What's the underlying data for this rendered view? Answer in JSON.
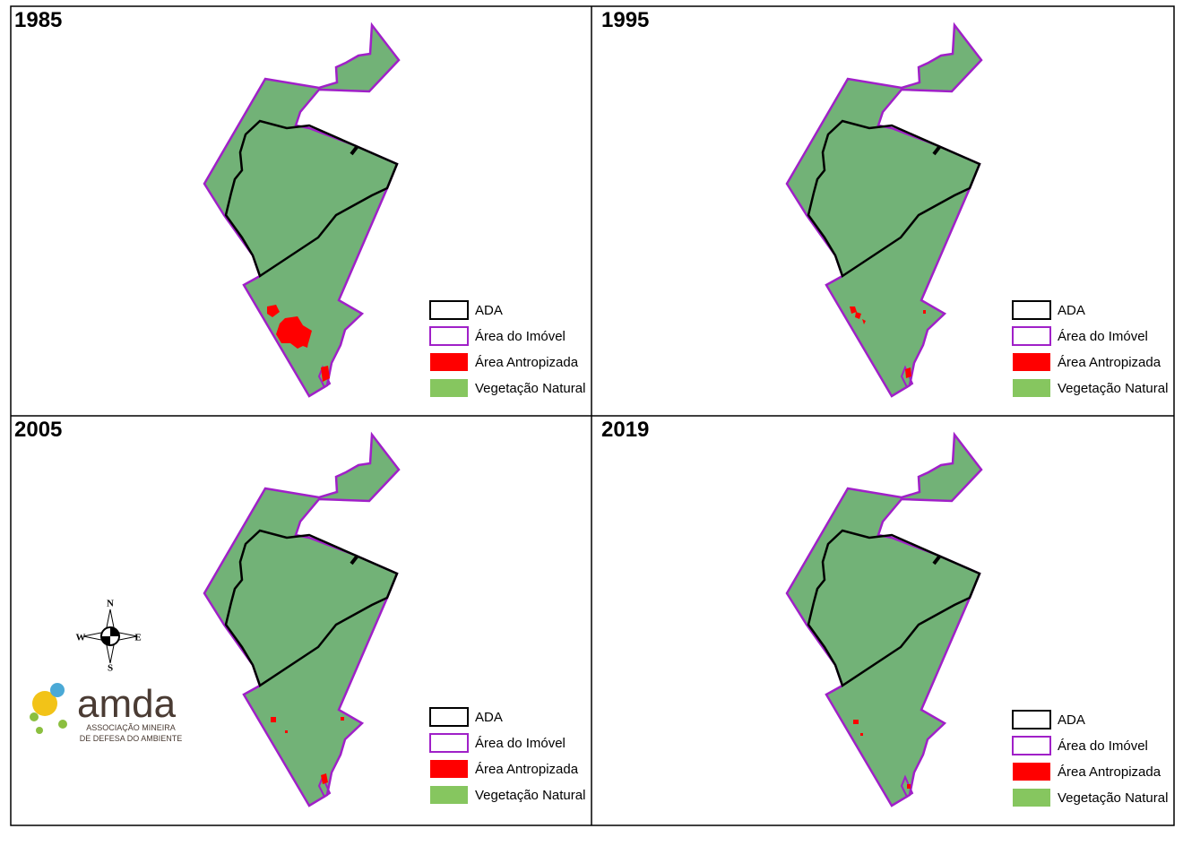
{
  "panels": [
    {
      "year": "1985"
    },
    {
      "year": "1995"
    },
    {
      "year": "2005"
    },
    {
      "year": "2019"
    }
  ],
  "legend": [
    {
      "label": "ADA"
    },
    {
      "label": "Área do Imóvel"
    },
    {
      "label": "Área Antropizada"
    },
    {
      "label": "Vegetação Natural"
    }
  ],
  "compass": {
    "n": "N",
    "s": "S",
    "e": "E",
    "w": "W"
  },
  "logo": {
    "name": "amda",
    "tagline_1": "ASSOCIAÇÃO MINEIRA",
    "tagline_2": "DE DEFESA DO AMBIENTE"
  }
}
